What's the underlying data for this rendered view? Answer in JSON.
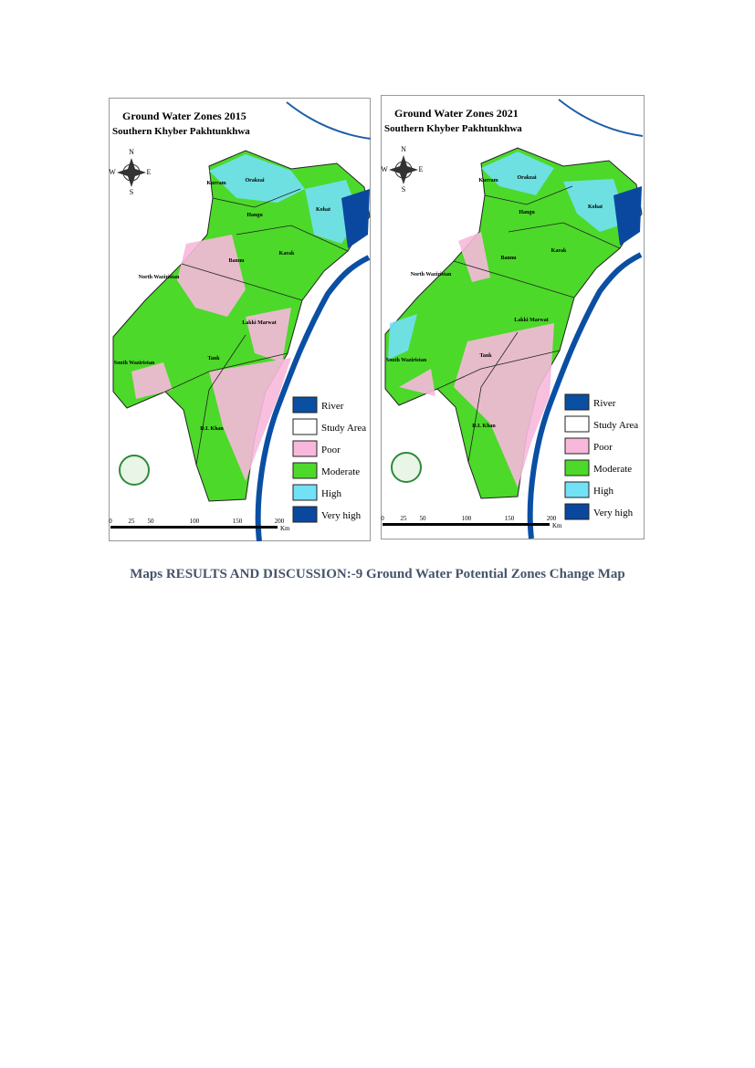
{
  "maps": [
    {
      "title": "Ground Water Zones 2015",
      "subtitle": "Southern Khyber Pakhtunkhwa",
      "compass": [
        "N",
        "W",
        "E",
        "S"
      ],
      "districts": [
        "Kurram",
        "Orakzai",
        "Kohat",
        "Hangu",
        "Karak",
        "Bannu",
        "North Waziristan",
        "Lakki Marwat",
        "South Waziristan",
        "Tank",
        "D.I. Khan"
      ],
      "legend": [
        {
          "label": "River",
          "color": "#0b4fa3"
        },
        {
          "label": "Study Area",
          "color": "#ffffff"
        },
        {
          "label": "Poor",
          "color": "#f7b8dc"
        },
        {
          "label": "Moderate",
          "color": "#4cd92a"
        },
        {
          "label": "High",
          "color": "#72e0f5"
        },
        {
          "label": "Very high",
          "color": "#0a48a0"
        }
      ],
      "scale": [
        "0",
        "25",
        "50",
        "100",
        "150",
        "200"
      ],
      "unit": "Km"
    },
    {
      "title": "Ground Water Zones 2021",
      "subtitle": "Southern Khyber Pakhtunkhwa",
      "compass": [
        "N",
        "W",
        "E",
        "S"
      ],
      "districts": [
        "Kurram",
        "Orakzai",
        "Kohat",
        "Hangu",
        "Karak",
        "Bannu",
        "North Waziristan",
        "Lakki Marwat",
        "South Waziristan",
        "Tank",
        "D.I. Khan"
      ],
      "legend": [
        {
          "label": "River",
          "color": "#0b4fa3"
        },
        {
          "label": "Study Area",
          "color": "#ffffff"
        },
        {
          "label": "Poor",
          "color": "#f7b8dc"
        },
        {
          "label": "Moderate",
          "color": "#4cd92a"
        },
        {
          "label": "High",
          "color": "#72e0f5"
        },
        {
          "label": "Very high",
          "color": "#0a48a0"
        }
      ],
      "scale": [
        "0",
        "25",
        "50",
        "100",
        "150",
        "200"
      ],
      "unit": "Km"
    }
  ],
  "caption": "Maps RESULTS AND DISCUSSION:-9 Ground Water Potential Zones Change Map"
}
